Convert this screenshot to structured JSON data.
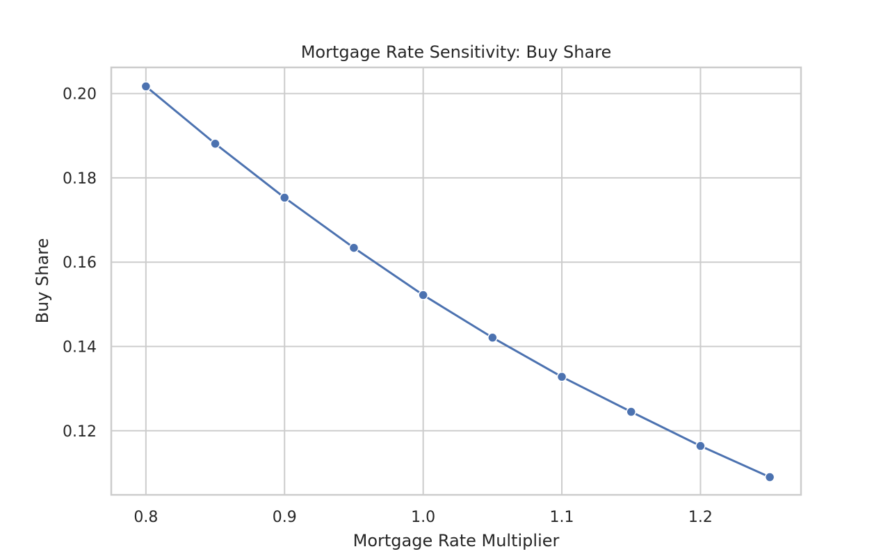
{
  "chart_data": {
    "type": "line",
    "title": "Mortgage Rate Sensitivity: Buy Share",
    "xlabel": "Mortgage Rate Multiplier",
    "ylabel": "Buy Share",
    "xlim": [
      0.775,
      1.2725
    ],
    "ylim": [
      0.1048,
      0.2062
    ],
    "x_ticks": [
      0.8,
      0.9,
      1.0,
      1.1,
      1.2
    ],
    "x_tick_labels": [
      "0.8",
      "0.9",
      "1.0",
      "1.1",
      "1.2"
    ],
    "y_ticks": [
      0.12,
      0.14,
      0.16,
      0.18,
      0.2
    ],
    "y_tick_labels": [
      "0.12",
      "0.14",
      "0.16",
      "0.18",
      "0.20"
    ],
    "grid": true,
    "legend": "none",
    "series": [
      {
        "color": "#4c72b0",
        "marker": "circle",
        "x": [
          0.8,
          0.85,
          0.9,
          0.95,
          1.0,
          1.05,
          1.1,
          1.15,
          1.2,
          1.25
        ],
        "y": [
          0.2017,
          0.1881,
          0.1753,
          0.1634,
          0.1522,
          0.1421,
          0.1328,
          0.1245,
          0.1164,
          0.109
        ]
      }
    ]
  }
}
